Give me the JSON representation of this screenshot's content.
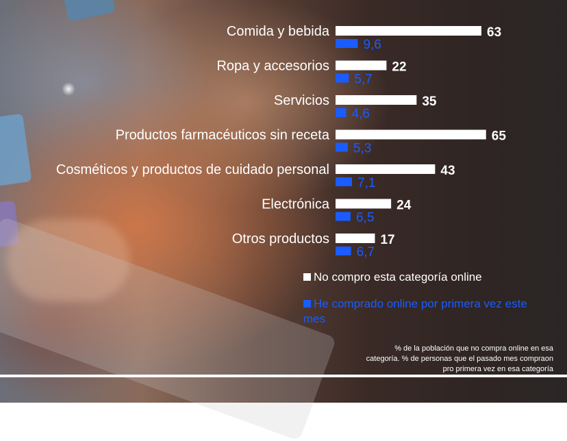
{
  "colors": {
    "no_online": "#ffffff",
    "first_time": "#1a5cff"
  },
  "chart_data": {
    "type": "bar",
    "orientation": "horizontal",
    "categories": [
      "Comida  y bebida",
      "Ropa y accesorios",
      "Servicios",
      "Productos  farmacéuticos sin receta",
      "Cosméticos  y productos  de cuidado personal",
      "Electrónica",
      "Otros productos"
    ],
    "series": [
      {
        "name": "No compro esta categoría online",
        "values": [
          63,
          22,
          35,
          65,
          43,
          24,
          17
        ],
        "labels": [
          "63",
          "22",
          "35",
          "65",
          "43",
          "24",
          "17"
        ]
      },
      {
        "name": "He comprado online por primera vez este mes",
        "values": [
          9.6,
          5.7,
          4.6,
          5.3,
          7.1,
          6.5,
          6.7
        ],
        "labels": [
          "9,6",
          "5,7",
          "4,6",
          "5,3",
          "7,1",
          "6,5",
          "6,7"
        ]
      }
    ],
    "xlim": [
      0,
      70
    ],
    "grid": false,
    "legend_position": "bottom-right"
  },
  "legend": {
    "item1": "No compro esta categoría online",
    "item2": "He comprado online por primera vez este mes"
  },
  "note": {
    "line1": "% de la población  que no compra online en esa",
    "line2": "categoría. % de personas  que el pasado mes compraon",
    "line3": "pro primera  vez  en esa categoría"
  }
}
